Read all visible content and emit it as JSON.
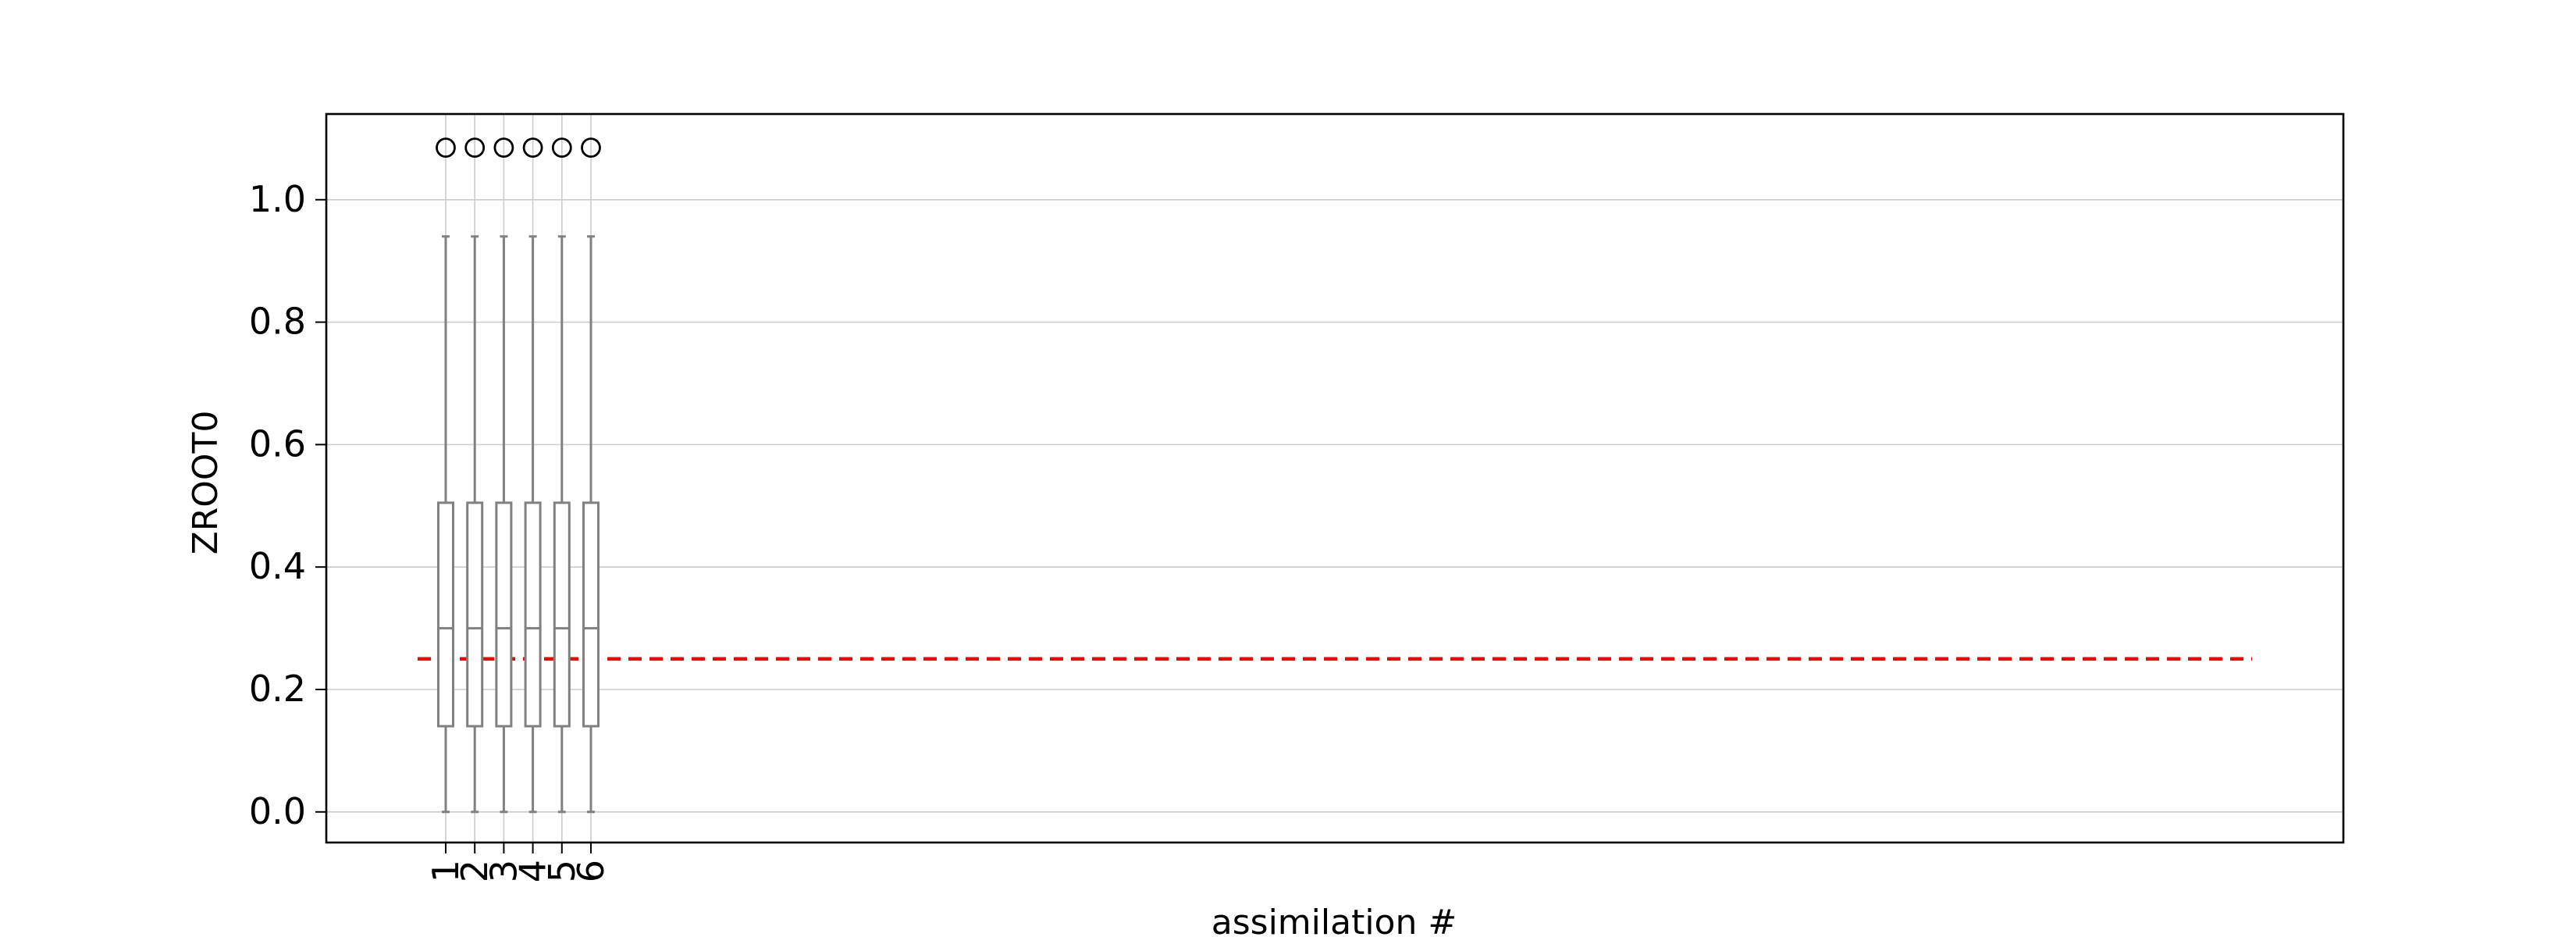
{
  "chart_data": {
    "type": "box",
    "title": "",
    "xlabel": "assimilation #",
    "ylabel": "ZROOT0",
    "categories": [
      "1",
      "2",
      "3",
      "4",
      "5",
      "6"
    ],
    "boxes": [
      {
        "label": "1",
        "whisker_low": 0.0,
        "q1": 0.14,
        "median": 0.3,
        "q3": 0.505,
        "whisker_high": 0.94,
        "outliers": [
          1.085
        ]
      },
      {
        "label": "2",
        "whisker_low": 0.0,
        "q1": 0.14,
        "median": 0.3,
        "q3": 0.505,
        "whisker_high": 0.94,
        "outliers": [
          1.085
        ]
      },
      {
        "label": "3",
        "whisker_low": 0.0,
        "q1": 0.14,
        "median": 0.3,
        "q3": 0.505,
        "whisker_high": 0.94,
        "outliers": [
          1.085
        ]
      },
      {
        "label": "4",
        "whisker_low": 0.0,
        "q1": 0.14,
        "median": 0.3,
        "q3": 0.505,
        "whisker_high": 0.94,
        "outliers": [
          1.085
        ]
      },
      {
        "label": "5",
        "whisker_low": 0.0,
        "q1": 0.14,
        "median": 0.3,
        "q3": 0.505,
        "whisker_high": 0.94,
        "outliers": [
          1.085
        ]
      },
      {
        "label": "6",
        "whisker_low": 0.0,
        "q1": 0.14,
        "median": 0.3,
        "q3": 0.505,
        "whisker_high": 0.94,
        "outliers": [
          1.085
        ]
      }
    ],
    "reference_line": {
      "y": 0.25,
      "color": "#ff0000",
      "style": "dashed"
    },
    "ylim": [
      -0.05,
      1.14
    ],
    "yticks": [
      "0.0",
      "0.2",
      "0.4",
      "0.6",
      "0.8",
      "1.0"
    ],
    "grid": true,
    "colors": {
      "box": "#808080",
      "grid": "#cccccc",
      "outlier": "#000000"
    }
  }
}
